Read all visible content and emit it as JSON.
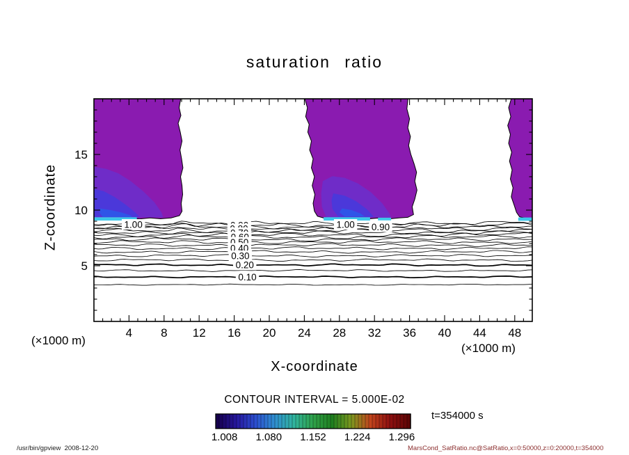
{
  "chart_data": {
    "type": "contour",
    "title": "saturation ratio",
    "xlabel": "X-coordinate",
    "ylabel": "Z-coordinate",
    "x_unit_label": "(×1000 m)",
    "z_unit_label": "(×1000 m)",
    "xlim": [
      0,
      50
    ],
    "zlim": [
      0,
      20
    ],
    "x_ticks": [
      4,
      8,
      12,
      16,
      20,
      24,
      28,
      32,
      36,
      40,
      44,
      48
    ],
    "z_ticks": [
      5,
      10,
      15
    ],
    "contour_interval_text": "CONTOUR INTERVAL = 5.000E-02",
    "time_label": "t=354000 s",
    "colorbar": {
      "labels": [
        "1.008",
        "1.080",
        "1.152",
        "1.224",
        "1.296"
      ],
      "colors": [
        "#16004e",
        "#27179e",
        "#2b4fd0",
        "#2f8fd0",
        "#30b49e",
        "#2fa24a",
        "#1f7f1f",
        "#7d981f",
        "#c2441c",
        "#8f1010",
        "#5e0606"
      ],
      "segments": 56
    },
    "line_levels": [
      {
        "v": 0.95,
        "z": 8.8
      },
      {
        "v": 0.9,
        "z": 8.64
      },
      {
        "v": 0.85,
        "z": 8.48
      },
      {
        "v": 0.8,
        "z": 8.32
      },
      {
        "v": 0.75,
        "z": 8.15
      },
      {
        "v": 0.7,
        "z": 7.97
      },
      {
        "v": 0.65,
        "z": 7.78
      },
      {
        "v": 0.6,
        "z": 7.58
      },
      {
        "v": 0.55,
        "z": 7.36
      },
      {
        "v": 0.5,
        "z": 7.12
      },
      {
        "v": 0.45,
        "z": 6.86
      },
      {
        "v": 0.4,
        "z": 6.57
      },
      {
        "v": 0.35,
        "z": 6.25
      },
      {
        "v": 0.3,
        "z": 5.9
      },
      {
        "v": 0.25,
        "z": 5.51
      },
      {
        "v": 0.2,
        "z": 5.07
      },
      {
        "v": 0.15,
        "z": 4.57
      },
      {
        "v": 0.1,
        "z": 4.0
      },
      {
        "v": 0.05,
        "z": 3.3
      }
    ],
    "thick_levels": [
      0.2,
      0.1
    ],
    "contour_labels": [
      {
        "text": "1.00",
        "x": 4.5,
        "z": 8.72
      },
      {
        "text": "1.00",
        "x": 28.7,
        "z": 8.72
      },
      {
        "text": "0.90",
        "x": 32.7,
        "z": 8.5
      },
      {
        "text": "0.90",
        "x": 16.6,
        "z": 8.64
      },
      {
        "text": "0.80",
        "x": 16.55,
        "z": 8.32
      },
      {
        "text": "0.70",
        "x": 16.6,
        "z": 7.97
      },
      {
        "text": "0.60",
        "x": 16.65,
        "z": 7.58
      },
      {
        "text": "0.50",
        "x": 16.6,
        "z": 7.12
      },
      {
        "text": "0.40",
        "x": 16.6,
        "z": 6.57
      },
      {
        "text": "0.30",
        "x": 16.7,
        "z": 5.9
      },
      {
        "text": "0.20",
        "x": 17.2,
        "z": 5.07
      },
      {
        "text": "0.10",
        "x": 17.5,
        "z": 4.0
      }
    ],
    "fills": [
      {
        "name": "saturated-region-left",
        "color": "#8a1bb0",
        "outline": true,
        "points": [
          [
            0,
            20
          ],
          [
            9.9,
            20
          ],
          [
            9.72,
            19.2
          ],
          [
            9.92,
            18.5
          ],
          [
            9.6,
            17.8
          ],
          [
            9.85,
            17
          ],
          [
            10.05,
            16.2
          ],
          [
            9.82,
            15.4
          ],
          [
            10,
            14.6
          ],
          [
            10.15,
            13.8
          ],
          [
            9.88,
            13
          ],
          [
            10.05,
            12.2
          ],
          [
            10.12,
            11.4
          ],
          [
            9.95,
            10.6
          ],
          [
            10.05,
            9.9
          ],
          [
            9.75,
            9.5
          ],
          [
            8.8,
            9.3
          ],
          [
            7.6,
            9.22
          ],
          [
            6.4,
            9.3
          ],
          [
            5.2,
            9.2
          ],
          [
            4,
            9.28
          ],
          [
            2.8,
            9.2
          ],
          [
            1.6,
            9.27
          ],
          [
            0.6,
            9.2
          ],
          [
            0,
            9.24
          ]
        ]
      },
      {
        "name": "saturated-region-middle",
        "color": "#8a1bb0",
        "outline": true,
        "points": [
          [
            24.05,
            20
          ],
          [
            24.35,
            19.2
          ],
          [
            24.15,
            18.4
          ],
          [
            24.55,
            17.7
          ],
          [
            24.4,
            17
          ],
          [
            24.8,
            16.2
          ],
          [
            24.6,
            15.4
          ],
          [
            25,
            14.6
          ],
          [
            24.8,
            13.8
          ],
          [
            25.15,
            13
          ],
          [
            24.9,
            12.2
          ],
          [
            25.2,
            11.4
          ],
          [
            25,
            10.6
          ],
          [
            25.15,
            9.9
          ],
          [
            25.5,
            9.45
          ],
          [
            26.4,
            9.25
          ],
          [
            27.6,
            9.32
          ],
          [
            28.8,
            9.22
          ],
          [
            30,
            9.3
          ],
          [
            31.2,
            9.2
          ],
          [
            32.4,
            9.28
          ],
          [
            33.6,
            9.2
          ],
          [
            34.8,
            9.3
          ],
          [
            35.8,
            9.35
          ],
          [
            36.45,
            9.6
          ],
          [
            36.3,
            10.3
          ],
          [
            36.6,
            11
          ],
          [
            36.85,
            11.8
          ],
          [
            36.6,
            12.6
          ],
          [
            36.8,
            13.4
          ],
          [
            36.5,
            14.2
          ],
          [
            36.15,
            15
          ],
          [
            35.9,
            15.8
          ],
          [
            36.1,
            16.6
          ],
          [
            35.8,
            17.4
          ],
          [
            36,
            18.2
          ],
          [
            35.7,
            19.1
          ],
          [
            35.82,
            20
          ]
        ]
      },
      {
        "name": "saturated-region-right",
        "color": "#8a1bb0",
        "outline": true,
        "points": [
          [
            47.6,
            20
          ],
          [
            47.3,
            19.2
          ],
          [
            47.55,
            18.4
          ],
          [
            47.2,
            17.6
          ],
          [
            47.5,
            16.8
          ],
          [
            47.3,
            16
          ],
          [
            47.65,
            15.2
          ],
          [
            47.4,
            14.4
          ],
          [
            47.7,
            13.6
          ],
          [
            47.5,
            12.8
          ],
          [
            47.8,
            12
          ],
          [
            47.6,
            11.2
          ],
          [
            47.95,
            10.4
          ],
          [
            48.2,
            9.8
          ],
          [
            48.55,
            9.4
          ],
          [
            49.3,
            9.25
          ],
          [
            50,
            9.22
          ],
          [
            50,
            20
          ]
        ]
      },
      {
        "name": "shade-left-1",
        "color": "#6f2cc8",
        "outline": false,
        "points": [
          [
            0,
            13.9
          ],
          [
            1.4,
            13.7
          ],
          [
            2.8,
            13.3
          ],
          [
            4.2,
            12.6
          ],
          [
            5.6,
            11.7
          ],
          [
            6.9,
            10.7
          ],
          [
            7.7,
            9.8
          ],
          [
            7.9,
            9.35
          ],
          [
            0,
            9.35
          ]
        ]
      },
      {
        "name": "shade-middle-1",
        "color": "#6f2cc8",
        "outline": false,
        "points": [
          [
            26.1,
            12.6
          ],
          [
            27.2,
            13.05
          ],
          [
            28.6,
            12.9
          ],
          [
            30.1,
            12.4
          ],
          [
            31.6,
            11.6
          ],
          [
            32.9,
            10.6
          ],
          [
            33.7,
            9.7
          ],
          [
            33.9,
            9.35
          ],
          [
            26.5,
            9.35
          ],
          [
            26,
            10.3
          ],
          [
            25.92,
            11.5
          ]
        ]
      },
      {
        "name": "shade-left-2",
        "color": "#4b38da",
        "outline": false,
        "points": [
          [
            0,
            11.9
          ],
          [
            1.1,
            11.7
          ],
          [
            2.3,
            11.2
          ],
          [
            3.6,
            10.5
          ],
          [
            4.7,
            9.8
          ],
          [
            5.2,
            9.4
          ],
          [
            0,
            9.4
          ]
        ]
      },
      {
        "name": "shade-middle-2",
        "color": "#4b38da",
        "outline": false,
        "points": [
          [
            27.3,
            11.5
          ],
          [
            28.6,
            11.3
          ],
          [
            29.9,
            10.8
          ],
          [
            31.1,
            10.1
          ],
          [
            31.8,
            9.5
          ],
          [
            31.9,
            9.38
          ],
          [
            27.9,
            9.38
          ],
          [
            27.2,
            10.1
          ],
          [
            27.1,
            10.9
          ]
        ]
      },
      {
        "name": "shade-left-3",
        "color": "#2f55e8",
        "outline": false,
        "points": [
          [
            0.7,
            10.15
          ],
          [
            1.9,
            10.0
          ],
          [
            3.1,
            9.8
          ],
          [
            4.1,
            9.55
          ],
          [
            4.4,
            9.38
          ],
          [
            1.0,
            9.38
          ],
          [
            0.65,
            9.75
          ]
        ]
      },
      {
        "name": "shade-middle-3",
        "color": "#2f55e8",
        "outline": false,
        "points": [
          [
            28.3,
            10.15
          ],
          [
            29.4,
            10.0
          ],
          [
            30.4,
            9.7
          ],
          [
            30.9,
            9.42
          ],
          [
            28.6,
            9.42
          ],
          [
            28.0,
            9.8
          ]
        ]
      },
      {
        "name": "cyan-streak-left",
        "color": "#3cc8ea",
        "outline": false,
        "points": [
          [
            0,
            9.36
          ],
          [
            4.9,
            9.36
          ],
          [
            4.9,
            9.06
          ],
          [
            0,
            9.06
          ]
        ]
      },
      {
        "name": "cyan-streak-middle",
        "color": "#3cc8ea",
        "outline": false,
        "points": [
          [
            26.2,
            9.36
          ],
          [
            31.5,
            9.36
          ],
          [
            31.5,
            9.06
          ],
          [
            26.2,
            9.06
          ]
        ]
      },
      {
        "name": "cyan-streak-middle-2",
        "color": "#3cc8ea",
        "outline": false,
        "points": [
          [
            32.4,
            9.32
          ],
          [
            33.9,
            9.32
          ],
          [
            33.9,
            9.08
          ],
          [
            32.4,
            9.08
          ]
        ]
      },
      {
        "name": "cyan-streak-right",
        "color": "#3cc8ea",
        "outline": false,
        "points": [
          [
            48.4,
            9.34
          ],
          [
            50,
            9.34
          ],
          [
            50,
            9.04
          ],
          [
            48.4,
            9.04
          ]
        ]
      }
    ]
  },
  "footer": {
    "left": "/usr/bin/gpview  2008-12-20",
    "right": "MarsCond_SatRatio.nc@SatRatio,x=0:50000,z=0:20000,t=354000"
  }
}
